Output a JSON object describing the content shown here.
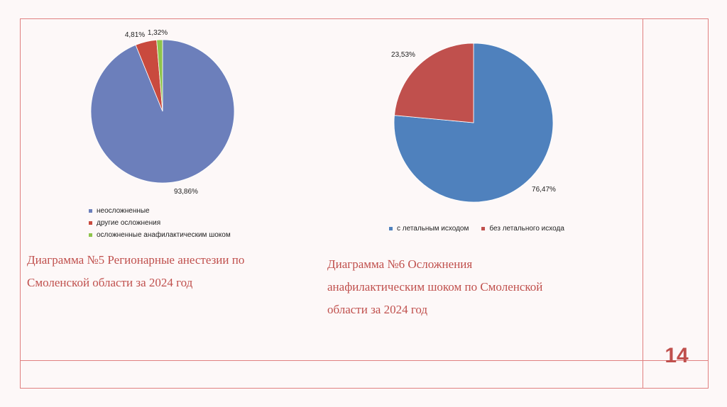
{
  "chart_data": [
    {
      "type": "pie",
      "slices": [
        {
          "label": "неосложненные",
          "value": 93.86,
          "display": "93,86%",
          "color": "#6c7fbb"
        },
        {
          "label": "другие осложнения",
          "value": 4.81,
          "display": "4,81%",
          "color": "#c94a3e"
        },
        {
          "label": "осложненные анафилактическим шоком",
          "value": 1.32,
          "display": "1,32%",
          "color": "#8ec44b"
        }
      ],
      "legend_position": "bottom"
    },
    {
      "type": "pie",
      "slices": [
        {
          "label": "с летальным исходом",
          "value": 76.47,
          "display": "76,47%",
          "color": "#4f81bd"
        },
        {
          "label": "без летального исхода",
          "value": 23.53,
          "display": "23,53%",
          "color": "#c0504d"
        }
      ],
      "legend_position": "bottom"
    }
  ],
  "caption1": {
    "line1": "Диаграмма №5 Регионарные анестезии по",
    "line2": "Смоленской области за 2024 год"
  },
  "caption2": {
    "line1": "Диаграмма №6 Осложнения",
    "line2": "анафилактическим шоком по Смоленской",
    "line3": "области за 2024 год"
  },
  "page_number": "14",
  "colors": {
    "frame": "#e08080",
    "caption": "#c0504d"
  }
}
